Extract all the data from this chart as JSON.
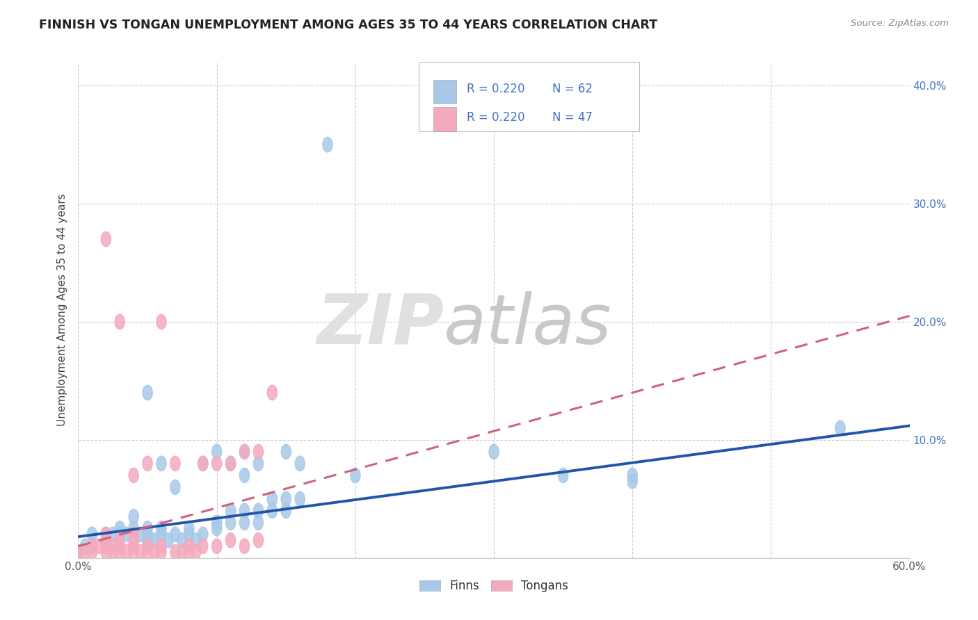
{
  "title": "FINNISH VS TONGAN UNEMPLOYMENT AMONG AGES 35 TO 44 YEARS CORRELATION CHART",
  "source": "Source: ZipAtlas.com",
  "ylabel": "Unemployment Among Ages 35 to 44 years",
  "xlim": [
    0.0,
    0.6
  ],
  "ylim": [
    0.0,
    0.42
  ],
  "xticks": [
    0.0,
    0.6
  ],
  "xticklabels": [
    "0.0%",
    "60.0%"
  ],
  "yticks_left": [
    0.0,
    0.1,
    0.2,
    0.3,
    0.4
  ],
  "yticklabels_left": [
    "",
    "",
    "",
    "",
    ""
  ],
  "yticks_right": [
    0.0,
    0.1,
    0.2,
    0.3,
    0.4
  ],
  "yticklabels_right": [
    "",
    "10.0%",
    "20.0%",
    "30.0%",
    "40.0%"
  ],
  "grid_yticks": [
    0.1,
    0.2,
    0.3,
    0.4
  ],
  "grid_xticks": [
    0.0,
    0.1,
    0.2,
    0.3,
    0.4,
    0.5,
    0.6
  ],
  "legend_color": "#4472C4",
  "finns_color": "#A8C8E8",
  "tongans_color": "#F4AABE",
  "finns_line_color": "#2255AA",
  "tongans_line_color": "#D06080",
  "background_color": "#ffffff",
  "grid_color": "#cccccc",
  "finns_scatter": [
    [
      0.0,
      0.005
    ],
    [
      0.005,
      0.01
    ],
    [
      0.01,
      0.01
    ],
    [
      0.01,
      0.02
    ],
    [
      0.02,
      0.01
    ],
    [
      0.02,
      0.015
    ],
    [
      0.02,
      0.02
    ],
    [
      0.025,
      0.02
    ],
    [
      0.03,
      0.01
    ],
    [
      0.03,
      0.015
    ],
    [
      0.03,
      0.02
    ],
    [
      0.03,
      0.025
    ],
    [
      0.035,
      0.02
    ],
    [
      0.04,
      0.01
    ],
    [
      0.04,
      0.015
    ],
    [
      0.04,
      0.025
    ],
    [
      0.04,
      0.035
    ],
    [
      0.045,
      0.02
    ],
    [
      0.05,
      0.015
    ],
    [
      0.05,
      0.02
    ],
    [
      0.05,
      0.025
    ],
    [
      0.05,
      0.14
    ],
    [
      0.055,
      0.015
    ],
    [
      0.06,
      0.02
    ],
    [
      0.06,
      0.025
    ],
    [
      0.06,
      0.08
    ],
    [
      0.065,
      0.015
    ],
    [
      0.07,
      0.02
    ],
    [
      0.07,
      0.06
    ],
    [
      0.075,
      0.015
    ],
    [
      0.08,
      0.02
    ],
    [
      0.08,
      0.025
    ],
    [
      0.085,
      0.015
    ],
    [
      0.09,
      0.02
    ],
    [
      0.09,
      0.08
    ],
    [
      0.1,
      0.025
    ],
    [
      0.1,
      0.03
    ],
    [
      0.1,
      0.09
    ],
    [
      0.11,
      0.03
    ],
    [
      0.11,
      0.04
    ],
    [
      0.11,
      0.08
    ],
    [
      0.12,
      0.03
    ],
    [
      0.12,
      0.04
    ],
    [
      0.12,
      0.07
    ],
    [
      0.12,
      0.09
    ],
    [
      0.13,
      0.03
    ],
    [
      0.13,
      0.04
    ],
    [
      0.13,
      0.08
    ],
    [
      0.14,
      0.04
    ],
    [
      0.14,
      0.05
    ],
    [
      0.15,
      0.04
    ],
    [
      0.15,
      0.05
    ],
    [
      0.15,
      0.09
    ],
    [
      0.16,
      0.05
    ],
    [
      0.16,
      0.08
    ],
    [
      0.18,
      0.35
    ],
    [
      0.2,
      0.07
    ],
    [
      0.3,
      0.09
    ],
    [
      0.35,
      0.07
    ],
    [
      0.4,
      0.07
    ],
    [
      0.4,
      0.065
    ],
    [
      0.55,
      0.11
    ]
  ],
  "tongans_scatter": [
    [
      0.0,
      0.005
    ],
    [
      0.005,
      0.005
    ],
    [
      0.01,
      0.005
    ],
    [
      0.01,
      0.01
    ],
    [
      0.015,
      0.01
    ],
    [
      0.02,
      0.005
    ],
    [
      0.02,
      0.01
    ],
    [
      0.02,
      0.015
    ],
    [
      0.02,
      0.02
    ],
    [
      0.02,
      0.27
    ],
    [
      0.025,
      0.005
    ],
    [
      0.025,
      0.01
    ],
    [
      0.03,
      0.005
    ],
    [
      0.03,
      0.01
    ],
    [
      0.03,
      0.015
    ],
    [
      0.03,
      0.2
    ],
    [
      0.035,
      0.005
    ],
    [
      0.04,
      0.005
    ],
    [
      0.04,
      0.01
    ],
    [
      0.04,
      0.015
    ],
    [
      0.04,
      0.02
    ],
    [
      0.04,
      0.07
    ],
    [
      0.045,
      0.005
    ],
    [
      0.05,
      0.005
    ],
    [
      0.05,
      0.01
    ],
    [
      0.05,
      0.08
    ],
    [
      0.055,
      0.005
    ],
    [
      0.06,
      0.005
    ],
    [
      0.06,
      0.01
    ],
    [
      0.06,
      0.2
    ],
    [
      0.07,
      0.005
    ],
    [
      0.07,
      0.08
    ],
    [
      0.075,
      0.005
    ],
    [
      0.08,
      0.005
    ],
    [
      0.08,
      0.01
    ],
    [
      0.085,
      0.005
    ],
    [
      0.09,
      0.01
    ],
    [
      0.09,
      0.08
    ],
    [
      0.1,
      0.01
    ],
    [
      0.1,
      0.08
    ],
    [
      0.11,
      0.015
    ],
    [
      0.11,
      0.08
    ],
    [
      0.12,
      0.01
    ],
    [
      0.12,
      0.09
    ],
    [
      0.13,
      0.015
    ],
    [
      0.13,
      0.09
    ],
    [
      0.14,
      0.14
    ]
  ],
  "finns_trendline": [
    [
      0.0,
      0.018
    ],
    [
      0.6,
      0.112
    ]
  ],
  "tongans_trendline": [
    [
      0.0,
      0.01
    ],
    [
      0.6,
      0.205
    ]
  ]
}
